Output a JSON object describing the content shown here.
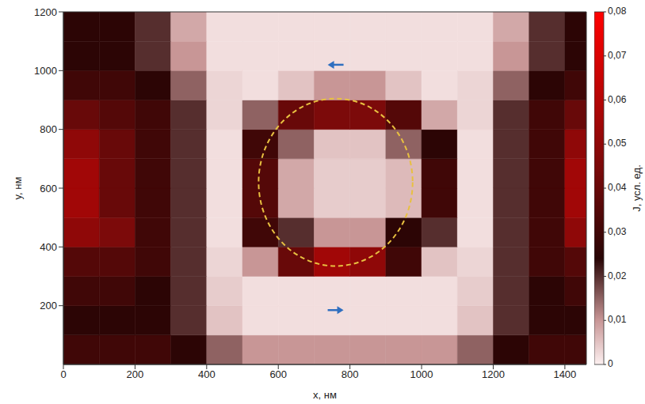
{
  "chart_data": {
    "type": "heatmap",
    "x_label": "x, нм",
    "y_label": "y, нм",
    "xlim": [
      0,
      1460
    ],
    "xticks": [
      0,
      200,
      400,
      600,
      800,
      1000,
      1200,
      1400
    ],
    "ylim": [
      0,
      1200
    ],
    "yticks": [
      200,
      400,
      600,
      800,
      1000,
      1200
    ],
    "x_edges": [
      0,
      100,
      200,
      300,
      400,
      500,
      600,
      700,
      800,
      900,
      1000,
      1100,
      1200,
      1300,
      1400,
      1460
    ],
    "y_edges": [
      0,
      100,
      200,
      300,
      400,
      500,
      600,
      700,
      800,
      900,
      1000,
      1100,
      1200
    ],
    "cells": [
      [
        0.03,
        0.03,
        0.03,
        0.025,
        0.015,
        0.01,
        0.01,
        0.01,
        0.01,
        0.01,
        0.01,
        0.015,
        0.025,
        0.03,
        0.03
      ],
      [
        0.025,
        0.025,
        0.025,
        0.02,
        0.005,
        0.002,
        0.002,
        0.002,
        0.002,
        0.002,
        0.002,
        0.005,
        0.02,
        0.025,
        0.025
      ],
      [
        0.03,
        0.03,
        0.025,
        0.02,
        0.004,
        0.002,
        0.002,
        0.002,
        0.002,
        0.002,
        0.002,
        0.004,
        0.02,
        0.025,
        0.03
      ],
      [
        0.035,
        0.035,
        0.03,
        0.02,
        0.003,
        0.01,
        0.04,
        0.055,
        0.05,
        0.03,
        0.005,
        0.003,
        0.02,
        0.03,
        0.035
      ],
      [
        0.05,
        0.045,
        0.03,
        0.02,
        0.002,
        0.03,
        0.02,
        0.01,
        0.01,
        0.025,
        0.02,
        0.002,
        0.02,
        0.03,
        0.05
      ],
      [
        0.055,
        0.04,
        0.03,
        0.02,
        0.002,
        0.035,
        0.008,
        0.004,
        0.004,
        0.006,
        0.03,
        0.002,
        0.02,
        0.03,
        0.055
      ],
      [
        0.055,
        0.04,
        0.03,
        0.02,
        0.002,
        0.035,
        0.008,
        0.004,
        0.004,
        0.006,
        0.03,
        0.002,
        0.02,
        0.03,
        0.055
      ],
      [
        0.05,
        0.04,
        0.03,
        0.02,
        0.002,
        0.03,
        0.015,
        0.005,
        0.005,
        0.015,
        0.025,
        0.002,
        0.02,
        0.03,
        0.05
      ],
      [
        0.04,
        0.035,
        0.03,
        0.02,
        0.003,
        0.015,
        0.04,
        0.045,
        0.045,
        0.035,
        0.008,
        0.003,
        0.02,
        0.03,
        0.04
      ],
      [
        0.03,
        0.03,
        0.025,
        0.015,
        0.003,
        0.002,
        0.005,
        0.01,
        0.01,
        0.005,
        0.002,
        0.003,
        0.015,
        0.025,
        0.03
      ],
      [
        0.025,
        0.025,
        0.02,
        0.01,
        0.002,
        0.002,
        0.002,
        0.002,
        0.002,
        0.002,
        0.002,
        0.002,
        0.01,
        0.02,
        0.025
      ],
      [
        0.025,
        0.025,
        0.02,
        0.008,
        0.002,
        0.002,
        0.002,
        0.002,
        0.002,
        0.002,
        0.002,
        0.002,
        0.008,
        0.02,
        0.025
      ]
    ],
    "colorbar": {
      "label": "J, усл. ед.",
      "range": [
        0,
        0.08
      ],
      "ticks": [
        0,
        {
          "value": 0.01,
          "label": "0,01"
        },
        {
          "value": 0.02,
          "label": "0,02"
        },
        {
          "value": 0.03,
          "label": "0,03"
        },
        {
          "value": 0.04,
          "label": "0,04"
        },
        {
          "value": 0.05,
          "label": "0,05"
        },
        {
          "value": 0.06,
          "label": "0,06"
        },
        {
          "value": 0.07,
          "label": "0,07"
        },
        {
          "value": 0.08,
          "label": "0,08"
        }
      ]
    },
    "ellipse": {
      "cx": 760,
      "cy": 620,
      "rx": 215,
      "ry": 285,
      "color": "#e8c040",
      "line_style": "dashed"
    },
    "arrows": [
      {
        "x": 760,
        "y": 1020,
        "direction": "left",
        "color": "#2f6fc0"
      },
      {
        "x": 760,
        "y": 185,
        "direction": "right",
        "color": "#2f6fc0"
      }
    ]
  }
}
